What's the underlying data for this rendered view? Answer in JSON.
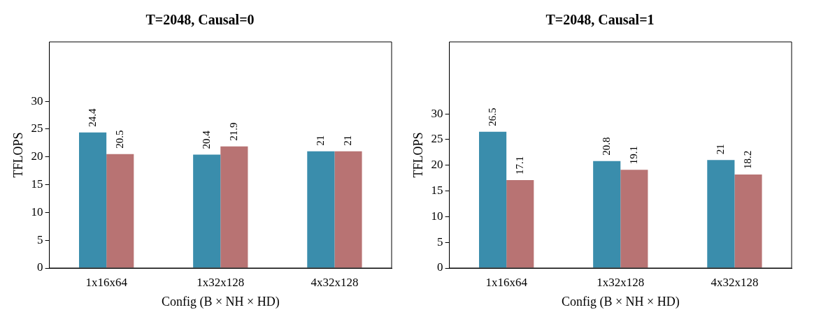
{
  "chart_data": [
    {
      "type": "bar",
      "title": "T=2048, Causal=0",
      "xlabel": "Config (B × NH × HD)",
      "ylabel": "TFLOPS",
      "categories": [
        "1x16x64",
        "1x32x128",
        "4x32x128"
      ],
      "series": [
        {
          "color": "#3a8dac",
          "values": [
            24.4,
            20.4,
            21
          ]
        },
        {
          "color": "#b87373",
          "values": [
            20.5,
            21.9,
            21
          ]
        }
      ],
      "ylim": [
        0,
        40.7
      ],
      "yticks": [
        0,
        5,
        10,
        15,
        20,
        25,
        30
      ],
      "data_labels": true
    },
    {
      "type": "bar",
      "title": "T=2048, Causal=1",
      "xlabel": "Config (B × NH × HD)",
      "ylabel": "TFLOPS",
      "categories": [
        "1x16x64",
        "1x32x128",
        "4x32x128"
      ],
      "series": [
        {
          "color": "#3a8dac",
          "values": [
            26.5,
            20.8,
            21
          ]
        },
        {
          "color": "#b87373",
          "values": [
            17.1,
            19.1,
            18.2
          ]
        }
      ],
      "ylim": [
        0,
        44
      ],
      "yticks": [
        0,
        5,
        10,
        15,
        20,
        25,
        30
      ],
      "data_labels": true
    }
  ]
}
